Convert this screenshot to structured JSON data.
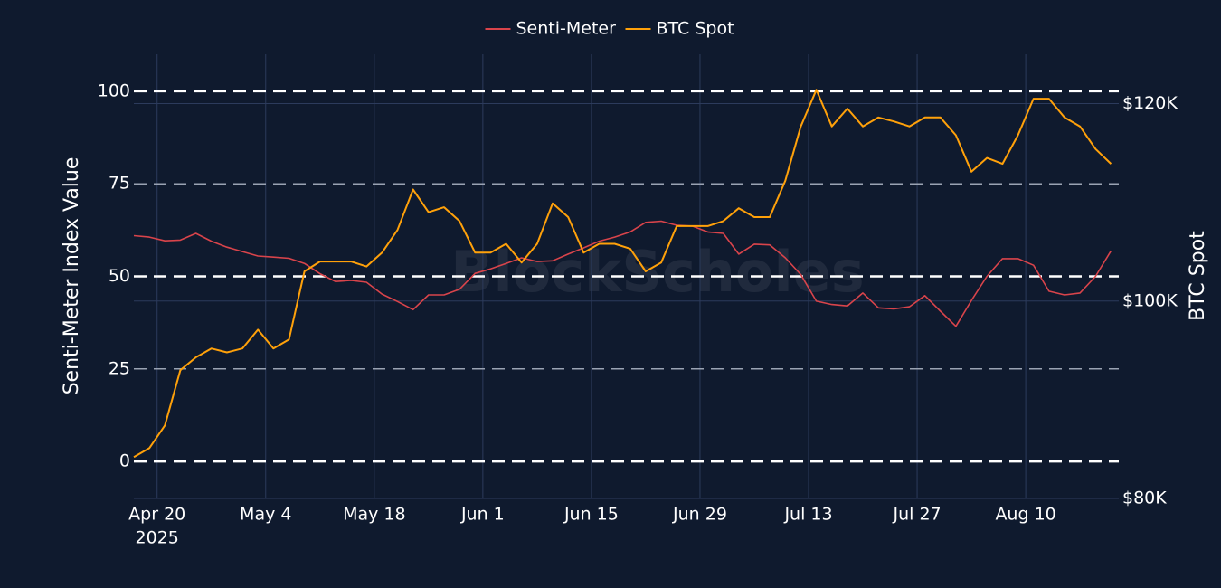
{
  "chart_data": {
    "type": "line",
    "watermark": "BlockScholes",
    "ylabel": "Senti-Meter Index Value",
    "y2label": "BTC Spot",
    "x": [
      "2025-04-17",
      "2025-04-19",
      "2025-04-21",
      "2025-04-23",
      "2025-04-25",
      "2025-04-27",
      "2025-04-29",
      "2025-05-01",
      "2025-05-03",
      "2025-05-05",
      "2025-05-07",
      "2025-05-09",
      "2025-05-11",
      "2025-05-13",
      "2025-05-15",
      "2025-05-17",
      "2025-05-19",
      "2025-05-21",
      "2025-05-23",
      "2025-05-25",
      "2025-05-27",
      "2025-05-29",
      "2025-05-31",
      "2025-06-02",
      "2025-06-04",
      "2025-06-06",
      "2025-06-08",
      "2025-06-10",
      "2025-06-12",
      "2025-06-14",
      "2025-06-16",
      "2025-06-18",
      "2025-06-20",
      "2025-06-22",
      "2025-06-24",
      "2025-06-26",
      "2025-06-28",
      "2025-06-30",
      "2025-07-02",
      "2025-07-04",
      "2025-07-06",
      "2025-07-08",
      "2025-07-10",
      "2025-07-12",
      "2025-07-14",
      "2025-07-16",
      "2025-07-18",
      "2025-07-20",
      "2025-07-22",
      "2025-07-24",
      "2025-07-26",
      "2025-07-28",
      "2025-07-30",
      "2025-08-01",
      "2025-08-03",
      "2025-08-05",
      "2025-08-07",
      "2025-08-09",
      "2025-08-11",
      "2025-08-13",
      "2025-08-15",
      "2025-08-17",
      "2025-08-19",
      "2025-08-21"
    ],
    "series": [
      {
        "name": "Senti-Meter",
        "color": "#d9444b",
        "axis": "y",
        "values": [
          61,
          60.6,
          59.6,
          59.8,
          61.6,
          59.5,
          57.9,
          56.7,
          55.5,
          55.2,
          54.9,
          53.5,
          50.7,
          48.6,
          48.9,
          48.4,
          45.2,
          43.2,
          41,
          45,
          45,
          46.5,
          50.8,
          52,
          53.5,
          55,
          54,
          54.2,
          56,
          57.7,
          59.5,
          60.6,
          62,
          64.6,
          64.9,
          63.8,
          63.6,
          62,
          61.6,
          56,
          58.7,
          58.5,
          55,
          50.5,
          43.3,
          42.4,
          42,
          45.5,
          41.5,
          41.2,
          41.8,
          44.8,
          40.6,
          36.5,
          43.5,
          50,
          54.8,
          54.8,
          53,
          46,
          45,
          45.5,
          50,
          56.9
        ]
      },
      {
        "name": "BTC Spot",
        "color": "#ffa10a",
        "axis": "y2",
        "values": [
          84200,
          85100,
          87400,
          93000,
          94300,
          95200,
          94800,
          95200,
          97100,
          95200,
          96100,
          103000,
          104000,
          104000,
          104000,
          103500,
          104900,
          107200,
          111300,
          109000,
          109500,
          108100,
          104900,
          104900,
          105800,
          103900,
          105800,
          109900,
          108500,
          104900,
          105800,
          105800,
          105300,
          103000,
          103900,
          107600,
          107600,
          107600,
          108100,
          109400,
          108500,
          108500,
          112200,
          117700,
          121400,
          117700,
          119500,
          117700,
          118600,
          118200,
          117700,
          118600,
          118600,
          116800,
          113100,
          114500,
          113900,
          116800,
          120500,
          120500,
          118600,
          117700,
          115400,
          113900
        ]
      }
    ],
    "xlim": [
      "2025-04-17",
      "2025-08-22"
    ],
    "xticks": [
      {
        "value": "2025-04-20",
        "label": "Apr 20"
      },
      {
        "value": "2025-05-04",
        "label": "May 4"
      },
      {
        "value": "2025-05-18",
        "label": "May 18"
      },
      {
        "value": "2025-06-01",
        "label": "Jun 1"
      },
      {
        "value": "2025-06-15",
        "label": "Jun 15"
      },
      {
        "value": "2025-06-29",
        "label": "Jun 29"
      },
      {
        "value": "2025-07-13",
        "label": "Jul 13"
      },
      {
        "value": "2025-07-27",
        "label": "Jul 27"
      },
      {
        "value": "2025-08-10",
        "label": "Aug 10"
      }
    ],
    "x_year": "2025",
    "ylim": [
      -10,
      110
    ],
    "yticks": [
      0,
      25,
      50,
      75,
      100
    ],
    "y2lim": [
      80000,
      125000
    ],
    "y2ticks": [
      {
        "value": 80000,
        "label": "$80K"
      },
      {
        "value": 100000,
        "label": "$100K"
      },
      {
        "value": 120000,
        "label": "$120K"
      }
    ],
    "grid": true,
    "legend": "top"
  }
}
